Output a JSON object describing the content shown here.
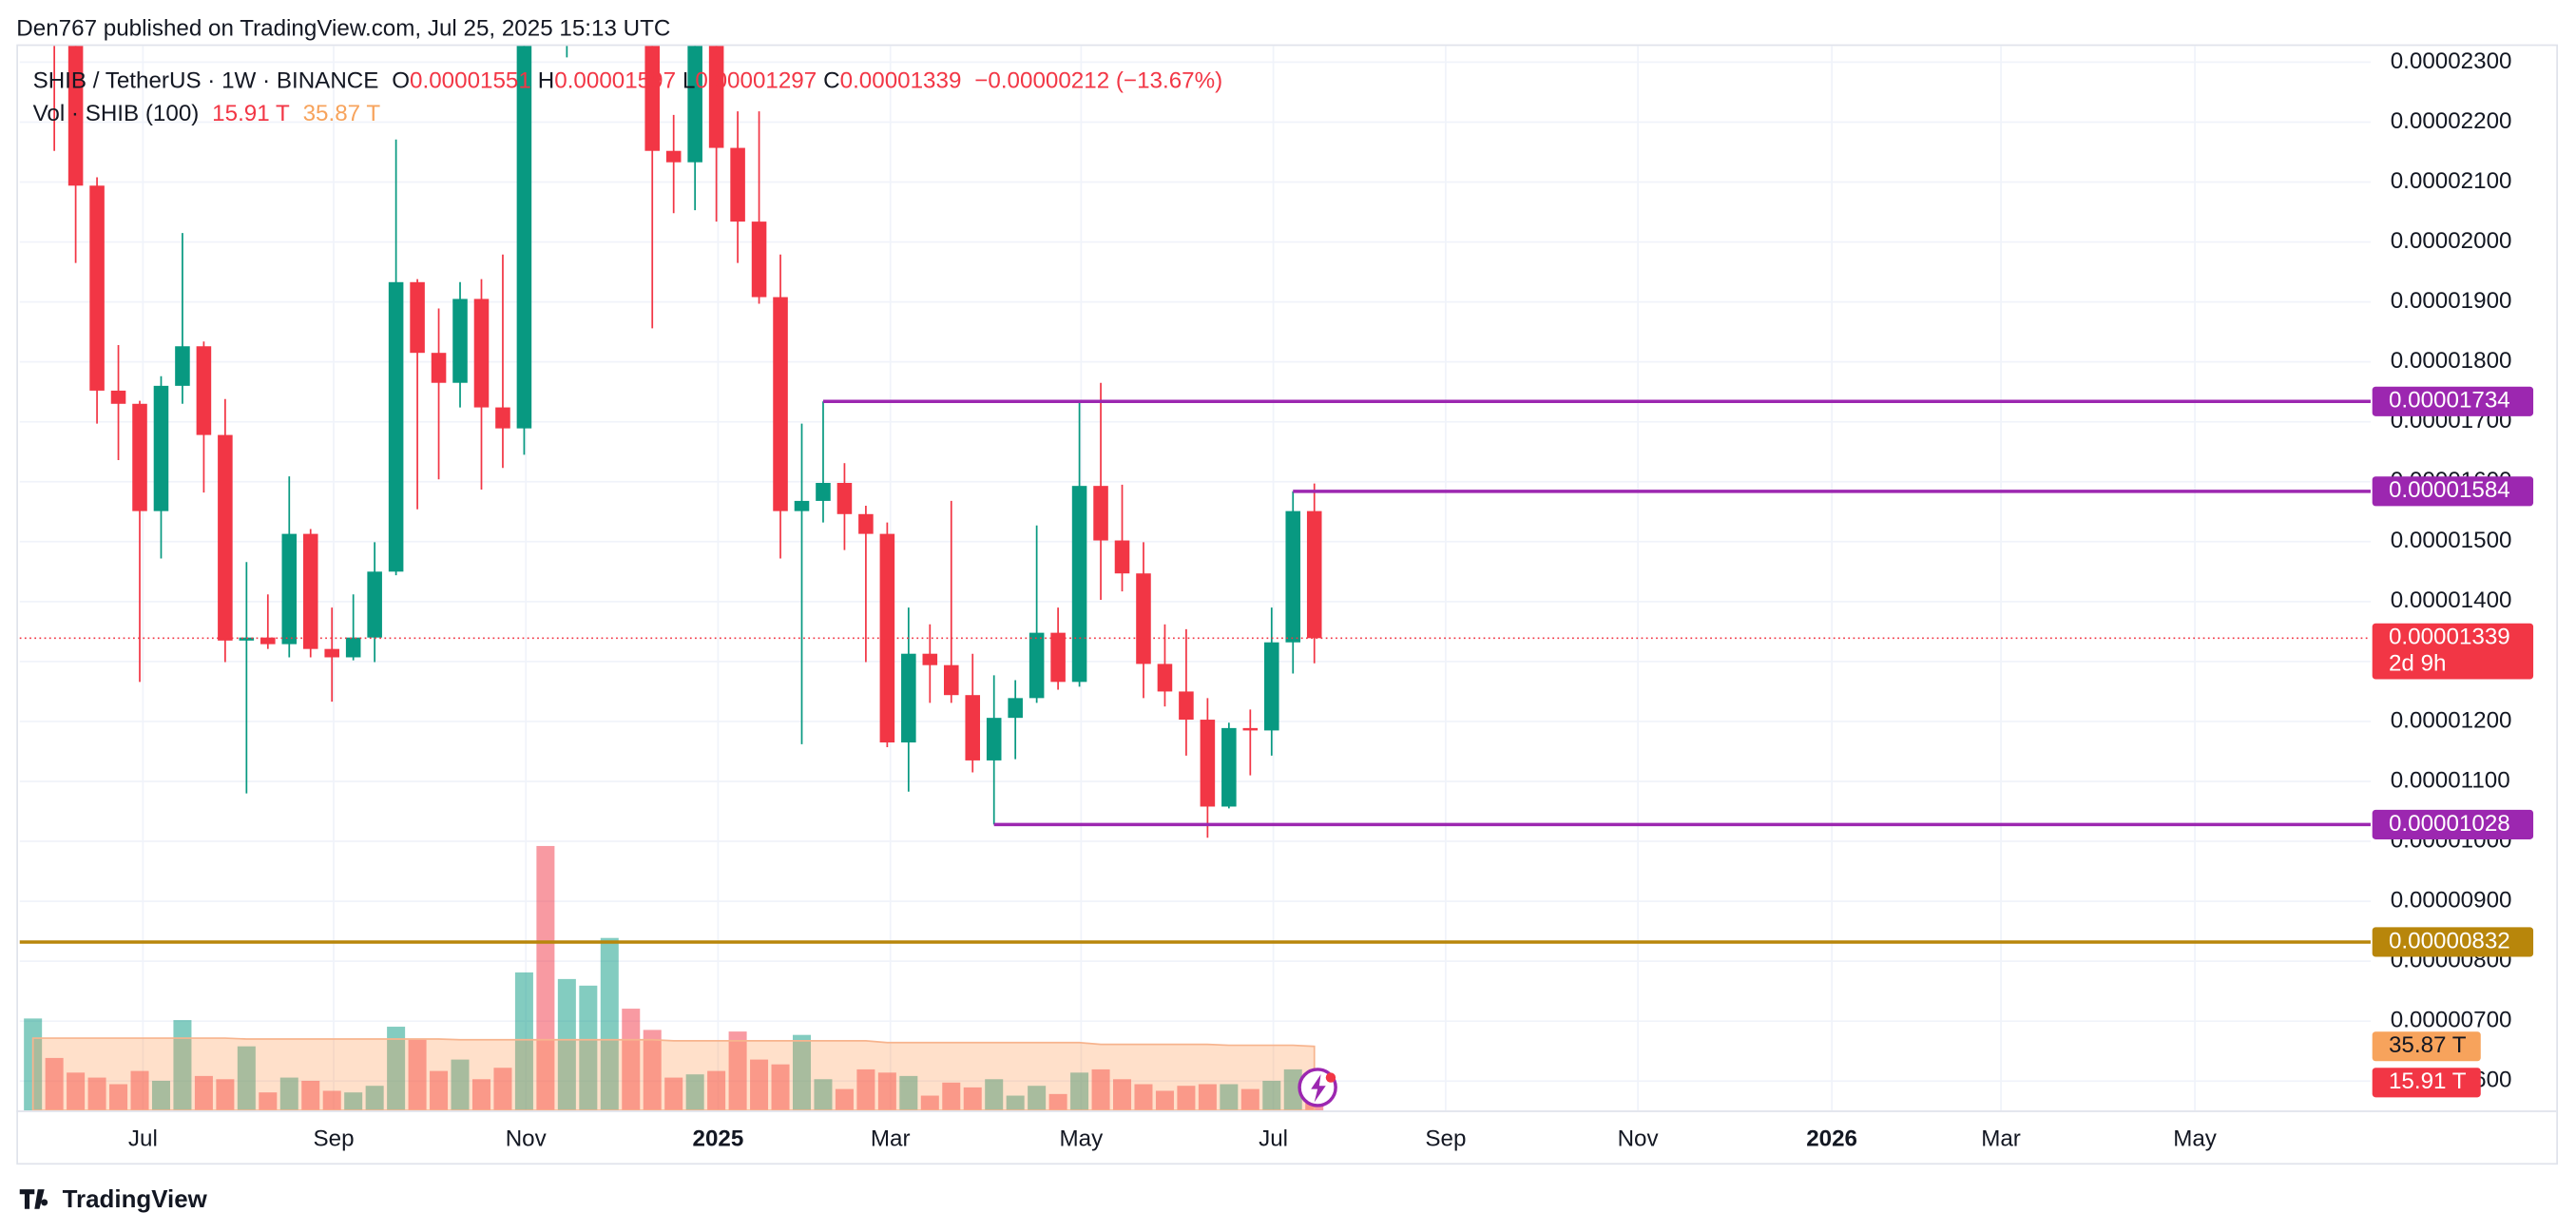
{
  "attribution": "Den767 published on TradingView.com, Jul 25, 2025 15:13 UTC",
  "brand": "TradingView",
  "chart_data": {
    "type": "candlestick",
    "title": "SHIB / TetherUS · 1W · BINANCE",
    "ohlc_legend": [
      "O",
      "0.00001551",
      "H",
      "0.00001597",
      "L",
      "0.00001297",
      "C",
      "0.00001339",
      "−0.00000212 (−13.67%)"
    ],
    "volume_legend": [
      "Vol · SHIB (100)",
      "15.91 T",
      "35.87 T"
    ],
    "up_color": "#089981",
    "down_color": "#f23645",
    "open": [
      2.4e-05,
      2.4e-05,
      2.33e-05,
      2.094e-05,
      1.752e-05,
      1.73e-05,
      1.551e-05,
      1.76e-05,
      1.826e-05,
      1.678e-05,
      1.335e-05,
      1.34e-05,
      1.329e-05,
      1.513e-05,
      1.321e-05,
      1.307e-05,
      1.34e-05,
      1.45e-05,
      1.933e-05,
      1.815e-05,
      1.765e-05,
      1.905e-05,
      1.724e-05,
      1.689e-05,
      2.4e-05,
      2.36e-05,
      2.55e-05,
      2.8e-05,
      2.9e-05,
      2.45e-05,
      2.152e-05,
      2.133e-05,
      2.36e-05,
      2.157e-05,
      2.034e-05,
      1.908e-05,
      1.551e-05,
      1.568e-05,
      1.598e-05,
      1.546e-05,
      1.513e-05,
      1.165e-05,
      1.313e-05,
      1.294e-05,
      1.244e-05,
      1.135e-05,
      1.206e-05,
      1.239e-05,
      1.348e-05,
      1.266e-05,
      1.593e-05,
      1.502e-05,
      1.447e-05,
      1.296e-05,
      1.25e-05,
      1.203e-05,
      1.058e-05,
      1.189e-05,
      1.185e-05,
      1.332e-05,
      1.551e-05
    ],
    "high": [
      2.5e-05,
      2.45e-05,
      2.35e-05,
      2.108e-05,
      1.828e-05,
      1.735e-05,
      1.776e-05,
      2.015e-05,
      1.834e-05,
      1.738e-05,
      1.466e-05,
      1.412e-05,
      1.609e-05,
      1.521e-05,
      1.39e-05,
      1.412e-05,
      1.499e-05,
      2.171e-05,
      1.938e-05,
      1.889e-05,
      1.933e-05,
      1.938e-05,
      1.979e-05,
      2.6e-05,
      2.65e-05,
      2.6e-05,
      2.9e-05,
      3.1e-05,
      3.3e-05,
      2.6e-05,
      2.212e-05,
      2.4e-05,
      2.5e-05,
      2.218e-05,
      2.218e-05,
      1.979e-05,
      1.697e-05,
      1.734e-05,
      1.631e-05,
      1.56e-05,
      1.532e-05,
      1.39e-05,
      1.362e-05,
      1.568e-05,
      1.313e-05,
      1.277e-05,
      1.269e-05,
      1.527e-05,
      1.39e-05,
      1.732e-05,
      1.765e-05,
      1.595e-05,
      1.499e-05,
      1.362e-05,
      1.354e-05,
      1.239e-05,
      1.198e-05,
      1.22e-05,
      1.39e-05,
      1.584e-05,
      1.597e-05
    ],
    "low": [
      2.34e-05,
      2.152e-05,
      1.965e-05,
      1.697e-05,
      1.636e-05,
      1.266e-05,
      1.472e-05,
      1.73e-05,
      1.582e-05,
      1.299e-05,
      1.08e-05,
      1.321e-05,
      1.307e-05,
      1.307e-05,
      1.233e-05,
      1.302e-05,
      1.299e-05,
      1.444e-05,
      1.554e-05,
      1.604e-05,
      1.724e-05,
      1.587e-05,
      1.623e-05,
      1.645e-05,
      2.35e-05,
      2.308e-05,
      2.45e-05,
      2.6e-05,
      2.4e-05,
      1.856e-05,
      2.048e-05,
      2.053e-05,
      2.034e-05,
      1.965e-05,
      1.897e-05,
      1.472e-05,
      1.162e-05,
      1.532e-05,
      1.486e-05,
      1.299e-05,
      1.157e-05,
      1.083e-05,
      1.231e-05,
      1.231e-05,
      1.115e-05,
      1.028e-05,
      1.137e-05,
      1.231e-05,
      1.253e-05,
      1.258e-05,
      1.403e-05,
      1.417e-05,
      1.239e-05,
      1.225e-05,
      1.143e-05,
      1.006e-05,
      1.055e-05,
      1.11e-05,
      1.143e-05,
      1.28e-05,
      1.297e-05
    ],
    "close": [
      2.45e-05,
      2.33e-05,
      2.094e-05,
      1.752e-05,
      1.73e-05,
      1.551e-05,
      1.76e-05,
      1.826e-05,
      1.678e-05,
      1.335e-05,
      1.34e-05,
      1.329e-05,
      1.513e-05,
      1.321e-05,
      1.307e-05,
      1.34e-05,
      1.45e-05,
      1.933e-05,
      1.815e-05,
      1.765e-05,
      1.905e-05,
      1.724e-05,
      1.689e-05,
      2.4e-05,
      2.36e-05,
      2.55e-05,
      2.8e-05,
      2.9e-05,
      2.45e-05,
      2.152e-05,
      2.133e-05,
      2.36e-05,
      2.157e-05,
      2.034e-05,
      1.908e-05,
      1.551e-05,
      1.568e-05,
      1.598e-05,
      1.546e-05,
      1.513e-05,
      1.165e-05,
      1.313e-05,
      1.294e-05,
      1.244e-05,
      1.135e-05,
      1.206e-05,
      1.239e-05,
      1.348e-05,
      1.266e-05,
      1.593e-05,
      1.502e-05,
      1.447e-05,
      1.296e-05,
      1.25e-05,
      1.203e-05,
      1.058e-05,
      1.189e-05,
      1.185e-05,
      1.332e-05,
      1.551e-05,
      1.339e-05
    ],
    "volume": [
      51.5,
      29.4,
      21.2,
      18.4,
      14.7,
      22.1,
      16.6,
      50.6,
      19.3,
      17.5,
      35.9,
      10.1,
      18.4,
      16.6,
      11.0,
      10.1,
      13.8,
      46.9,
      39.6,
      22.1,
      28.5,
      17.5,
      23.9,
      77.3,
      148.1,
      73.6,
      69.9,
      96.6,
      57.0,
      45.1,
      18.4,
      20.2,
      22.1,
      44.2,
      28.5,
      25.8,
      42.3,
      17.5,
      12.0,
      23.0,
      21.2,
      19.3,
      8.3,
      15.6,
      12.9,
      17.5,
      8.3,
      13.8,
      9.2,
      21.2,
      23.0,
      17.5,
      14.7,
      11.0,
      13.8,
      14.7,
      14.7,
      12.0,
      16.6,
      23.0,
      15.91
    ],
    "volume_ma": [
      40.5,
      40.5,
      40.5,
      40.5,
      40.5,
      40.5,
      40.5,
      40.5,
      40.5,
      40.5,
      40.0,
      40.0,
      40.0,
      40.0,
      40.0,
      40.0,
      40.0,
      40.0,
      40.0,
      40.0,
      39.6,
      39.6,
      39.6,
      39.6,
      39.6,
      39.6,
      39.6,
      39.6,
      39.6,
      39.6,
      39.0,
      39.0,
      39.0,
      39.0,
      39.0,
      39.0,
      39.0,
      39.0,
      39.0,
      39.0,
      38.0,
      38.0,
      38.0,
      38.0,
      38.0,
      38.0,
      38.0,
      38.0,
      38.0,
      38.0,
      37.0,
      37.0,
      37.0,
      37.0,
      37.0,
      37.0,
      36.5,
      36.5,
      36.5,
      36.5,
      35.87
    ],
    "ylim": [
      5.51e-06,
      2.327e-05
    ],
    "yticks": [
      {
        "value": 6e-06,
        "label": "0.00000600"
      },
      {
        "value": 7e-06,
        "label": "0.00000700"
      },
      {
        "value": 8e-06,
        "label": "0.00000800"
      },
      {
        "value": 9e-06,
        "label": "0.00000900"
      },
      {
        "value": 1e-05,
        "label": "0.00001000"
      },
      {
        "value": 1.1e-05,
        "label": "0.00001100"
      },
      {
        "value": 1.2e-05,
        "label": "0.00001200"
      },
      {
        "value": 1.3e-05,
        "label": "0.00001300"
      },
      {
        "value": 1.4e-05,
        "label": "0.00001400"
      },
      {
        "value": 1.5e-05,
        "label": "0.00001500"
      },
      {
        "value": 1.6e-05,
        "label": "0.00001600"
      },
      {
        "value": 1.7e-05,
        "label": "0.00001700"
      },
      {
        "value": 1.8e-05,
        "label": "0.00001800"
      },
      {
        "value": 1.9e-05,
        "label": "0.00001900"
      },
      {
        "value": 2e-05,
        "label": "0.00002000"
      },
      {
        "value": 2.1e-05,
        "label": "0.00002100"
      },
      {
        "value": 2.2e-05,
        "label": "0.00002200"
      },
      {
        "value": 2.3e-05,
        "label": "0.00002300"
      }
    ],
    "xlim": [
      -0.62,
      109.46
    ],
    "xticks": [
      {
        "value": 5.15,
        "label": "Jul"
      },
      {
        "value": 14.08,
        "label": "Sep"
      },
      {
        "value": 23.08,
        "label": "Nov"
      },
      {
        "value": 32.08,
        "label": "2025"
      },
      {
        "value": 40.15,
        "label": "Mar"
      },
      {
        "value": 49.08,
        "label": "May"
      },
      {
        "value": 58.08,
        "label": "Jul"
      },
      {
        "value": 66.15,
        "label": "Sep"
      },
      {
        "value": 75.15,
        "label": "Nov"
      },
      {
        "value": 84.23,
        "label": "2026"
      },
      {
        "value": 92.15,
        "label": "Mar"
      },
      {
        "value": 101.23,
        "label": "May"
      }
    ],
    "grid": true,
    "levels": [
      {
        "value": 1.734e-05,
        "start": 37,
        "color": "#9c27b0"
      },
      {
        "value": 1.584e-05,
        "start": 59,
        "color": "#9c27b0"
      },
      {
        "value": 1.028e-05,
        "start": 45,
        "color": "#9c27b0"
      },
      {
        "value": 8.32e-06,
        "color": "#b8860b"
      }
    ],
    "last_price": {
      "value": 1.339e-05,
      "countdown": "2d 9h"
    }
  }
}
